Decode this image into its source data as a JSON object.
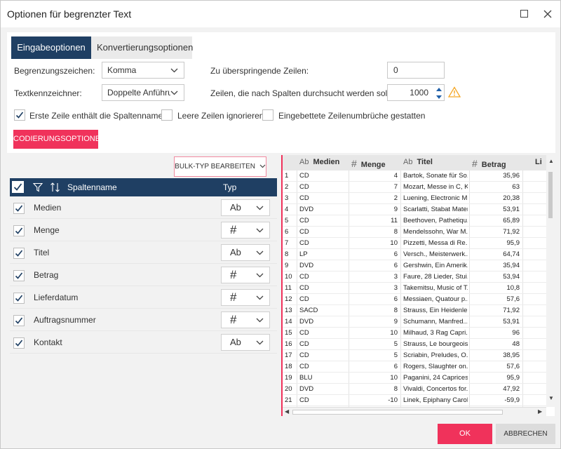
{
  "window": {
    "title": "Optionen für begrenzter Text"
  },
  "tabs": [
    {
      "label": "Eingabeoptionen",
      "active": true
    },
    {
      "label": "Konvertierungsoptionen",
      "active": false
    }
  ],
  "options": {
    "delimiter_label": "Begrenzungszeichen:",
    "delimiter_value": "Komma",
    "qualifier_label": "Textkennzeichner:",
    "qualifier_value": "Doppelte Anführu",
    "skip_rows_label": "Zu überspringende Zeilen:",
    "skip_rows_value": "0",
    "scan_rows_label": "Zeilen, die nach Spalten durchsucht werden sollen:",
    "scan_rows_value": "1000",
    "first_row_label": "Erste Zeile enthält die Spaltennamen",
    "first_row_checked": true,
    "ignore_empty_label": "Leere Zeilen ignorieren",
    "ignore_empty_checked": false,
    "embedded_breaks_label": "Eingebettete Zeilenumbrüche gestatten",
    "embedded_breaks_checked": false,
    "encoding_button": "CODIERUNGSOPTIONEN"
  },
  "columns_panel": {
    "bulk_button": "BULK-TYP BEARBEITEN",
    "header_name": "Spaltenname",
    "header_type": "Typ",
    "rows": [
      {
        "name": "Medien",
        "type": "Ab",
        "checked": true
      },
      {
        "name": "Menge",
        "type": "#",
        "checked": true
      },
      {
        "name": "Titel",
        "type": "Ab",
        "checked": true
      },
      {
        "name": "Betrag",
        "type": "#",
        "checked": true
      },
      {
        "name": "Lieferdatum",
        "type": "#",
        "checked": true
      },
      {
        "name": "Auftragsnummer",
        "type": "#",
        "checked": true
      },
      {
        "name": "Kontakt",
        "type": "Ab",
        "checked": true
      }
    ]
  },
  "preview": {
    "headers": [
      {
        "sym": "Ab",
        "label": "Medien"
      },
      {
        "sym": "#",
        "label": "Menge"
      },
      {
        "sym": "Ab",
        "label": "Titel"
      },
      {
        "sym": "#",
        "label": "Betrag"
      },
      {
        "sym": "",
        "label": "Li"
      }
    ],
    "rows": [
      [
        "1",
        "CD",
        "4",
        "Bartok, Sonate für So...",
        "35,96"
      ],
      [
        "2",
        "CD",
        "7",
        "Mozart, Messe in C, K...",
        "63"
      ],
      [
        "3",
        "CD",
        "2",
        "Luening, Electronic M...",
        "20,38"
      ],
      [
        "4",
        "DVD",
        "9",
        "Scarlatti, Stabat Mater",
        "53,91"
      ],
      [
        "5",
        "CD",
        "11",
        "Beethoven, Pathetiqu...",
        "65,89"
      ],
      [
        "6",
        "CD",
        "8",
        "Mendelssohn, War M...",
        "71,92"
      ],
      [
        "7",
        "CD",
        "10",
        "Pizzetti, Messa di Re...",
        "95,9"
      ],
      [
        "8",
        "LP",
        "6",
        "Versch., Meisterwerk...",
        "64,74"
      ],
      [
        "9",
        "DVD",
        "6",
        "Gershwin, Ein Amerik...",
        "35,94"
      ],
      [
        "10",
        "CD",
        "3",
        "Faure, 28 Lieder, Stui...",
        "53,94"
      ],
      [
        "11",
        "CD",
        "3",
        "Takemitsu, Music of T...",
        "10,8"
      ],
      [
        "12",
        "CD",
        "6",
        "Messiaen, Quatour p...",
        "57,6"
      ],
      [
        "13",
        "SACD",
        "8",
        "Strauss, Ein Heidenle...",
        "71,92"
      ],
      [
        "14",
        "DVD",
        "9",
        "Schumann, Manfred...",
        "53,91"
      ],
      [
        "15",
        "CD",
        "10",
        "Milhaud, 3 Rag Capri...",
        "96"
      ],
      [
        "16",
        "CD",
        "5",
        "Strauss, Le bourgeois...",
        "48"
      ],
      [
        "17",
        "CD",
        "5",
        "Scriabin, Preludes, O...",
        "38,95"
      ],
      [
        "18",
        "CD",
        "6",
        "Rogers, Slaughter on...",
        "57,6"
      ],
      [
        "19",
        "BLU",
        "10",
        "Paganini, 24 Caprices...",
        "95,9"
      ],
      [
        "20",
        "DVD",
        "8",
        "Vivaldi, Concertos for...",
        "47,92"
      ],
      [
        "21",
        "CD",
        "-10",
        "Linek, Epiphany Carol",
        "-59,9"
      ]
    ]
  },
  "footer": {
    "ok_label": "OK",
    "cancel_label": "ABBRECHEN"
  },
  "colors": {
    "navy": "#1f3f63",
    "accent": "#f0325b",
    "warning": "#f5a623"
  },
  "icons": [
    "maximize-icon",
    "close-icon",
    "chevron-down-icon",
    "spinner-icon",
    "warning-icon",
    "checkmark-icon",
    "filter-icon",
    "sort-icon"
  ]
}
